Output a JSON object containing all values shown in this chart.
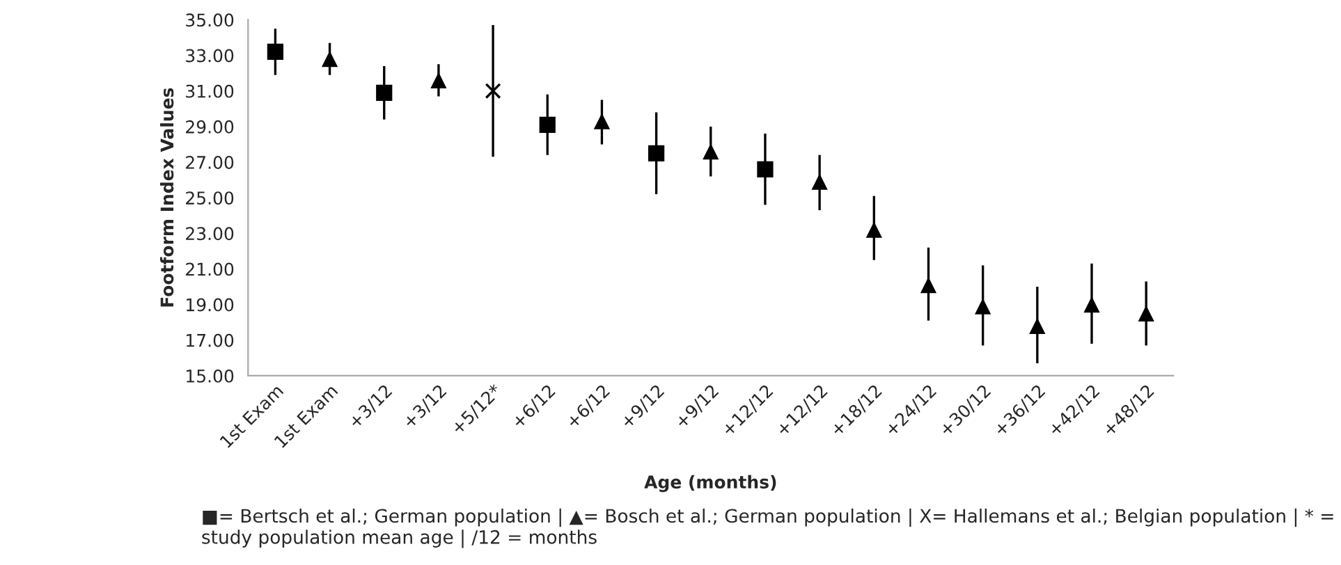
{
  "chart_data": {
    "type": "scatter",
    "xlabel": "Age (months)",
    "ylabel": "Footform Index Values",
    "categories": [
      "1st Exam",
      "1st Exam",
      "+3/12",
      "+3/12",
      "+5/12*",
      "+6/12",
      "+6/12",
      "+9/12",
      "+9/12",
      "+12/12",
      "+12/12",
      "+18/12",
      "+24/12",
      "+30/12",
      "+36/12",
      "+42/12",
      "+48/12"
    ],
    "series": [
      {
        "color": "#000000",
        "marker": "square",
        "values": [
          33.2,
          null,
          30.9,
          null,
          null,
          29.1,
          null,
          27.5,
          null,
          26.6,
          null,
          null,
          null,
          null,
          null,
          null,
          null
        ],
        "errors": [
          [
            31.9,
            34.5
          ],
          null,
          [
            29.4,
            32.4
          ],
          null,
          null,
          [
            27.4,
            30.8
          ],
          null,
          [
            25.2,
            29.8
          ],
          null,
          [
            24.6,
            28.6
          ],
          null,
          null,
          null,
          null,
          null,
          null,
          null
        ]
      },
      {
        "color": "#000000",
        "marker": "triangle",
        "values": [
          null,
          32.8,
          null,
          31.6,
          null,
          null,
          29.3,
          null,
          27.6,
          null,
          25.9,
          23.2,
          20.1,
          18.9,
          17.8,
          19.0,
          18.5
        ],
        "errors": [
          null,
          [
            31.9,
            33.7
          ],
          null,
          [
            30.7,
            32.5
          ],
          null,
          null,
          [
            28.0,
            30.5
          ],
          null,
          [
            26.2,
            29.0
          ],
          null,
          [
            24.3,
            27.4
          ],
          [
            21.5,
            25.1
          ],
          [
            18.1,
            22.2
          ],
          [
            16.7,
            21.2
          ],
          [
            15.7,
            20.0
          ],
          [
            16.8,
            21.3
          ],
          [
            16.7,
            20.3
          ]
        ]
      },
      {
        "color": "#000000",
        "marker": "cross",
        "values": [
          null,
          null,
          null,
          null,
          31.0,
          null,
          null,
          null,
          null,
          null,
          null,
          null,
          null,
          null,
          null,
          null,
          null
        ],
        "errors": [
          null,
          null,
          null,
          null,
          [
            27.3,
            34.7
          ],
          null,
          null,
          null,
          null,
          null,
          null,
          null,
          null,
          null,
          null,
          null,
          null
        ]
      }
    ],
    "ylim": [
      15,
      35
    ],
    "yticks": [
      {
        "value": 15,
        "label": "15.00"
      },
      {
        "value": 17,
        "label": "17.00"
      },
      {
        "value": 19,
        "label": "19.00"
      },
      {
        "value": 21,
        "label": "21.00"
      },
      {
        "value": 23,
        "label": "23.00"
      },
      {
        "value": 25,
        "label": "25.00"
      },
      {
        "value": 27,
        "label": "27.00"
      },
      {
        "value": 29,
        "label": "29.00"
      },
      {
        "value": 31,
        "label": "31.00"
      },
      {
        "value": 33,
        "label": "33.00"
      },
      {
        "value": 35,
        "label": "35.00"
      }
    ],
    "grid": false,
    "legend": false,
    "annotations": [
      "■= Bertsch et al.; German population | ▲= Bosch et al.; German population | X= Hallemans et al.; Belgian population | * = study population mean age | /12 = months"
    ]
  }
}
